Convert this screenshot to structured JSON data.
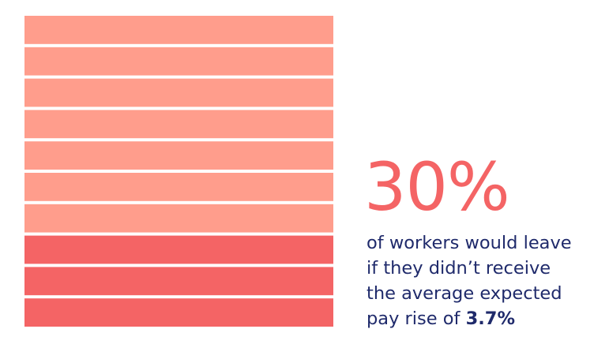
{
  "chart_data": {
    "type": "waffle",
    "total_units": 10,
    "highlighted_units": 3,
    "unit_colors": {
      "regular": "#FF9D8C",
      "highlighted": "#F46465"
    },
    "value_label": "30%",
    "caption_lines": [
      "of workers would leave",
      "if they didn’t receive",
      "the average expected"
    ],
    "caption_last_prefix": "pay rise of ",
    "caption_emphasis": "3.7%"
  },
  "colors": {
    "accent": "#F46465",
    "text": "#1F2A6B"
  }
}
